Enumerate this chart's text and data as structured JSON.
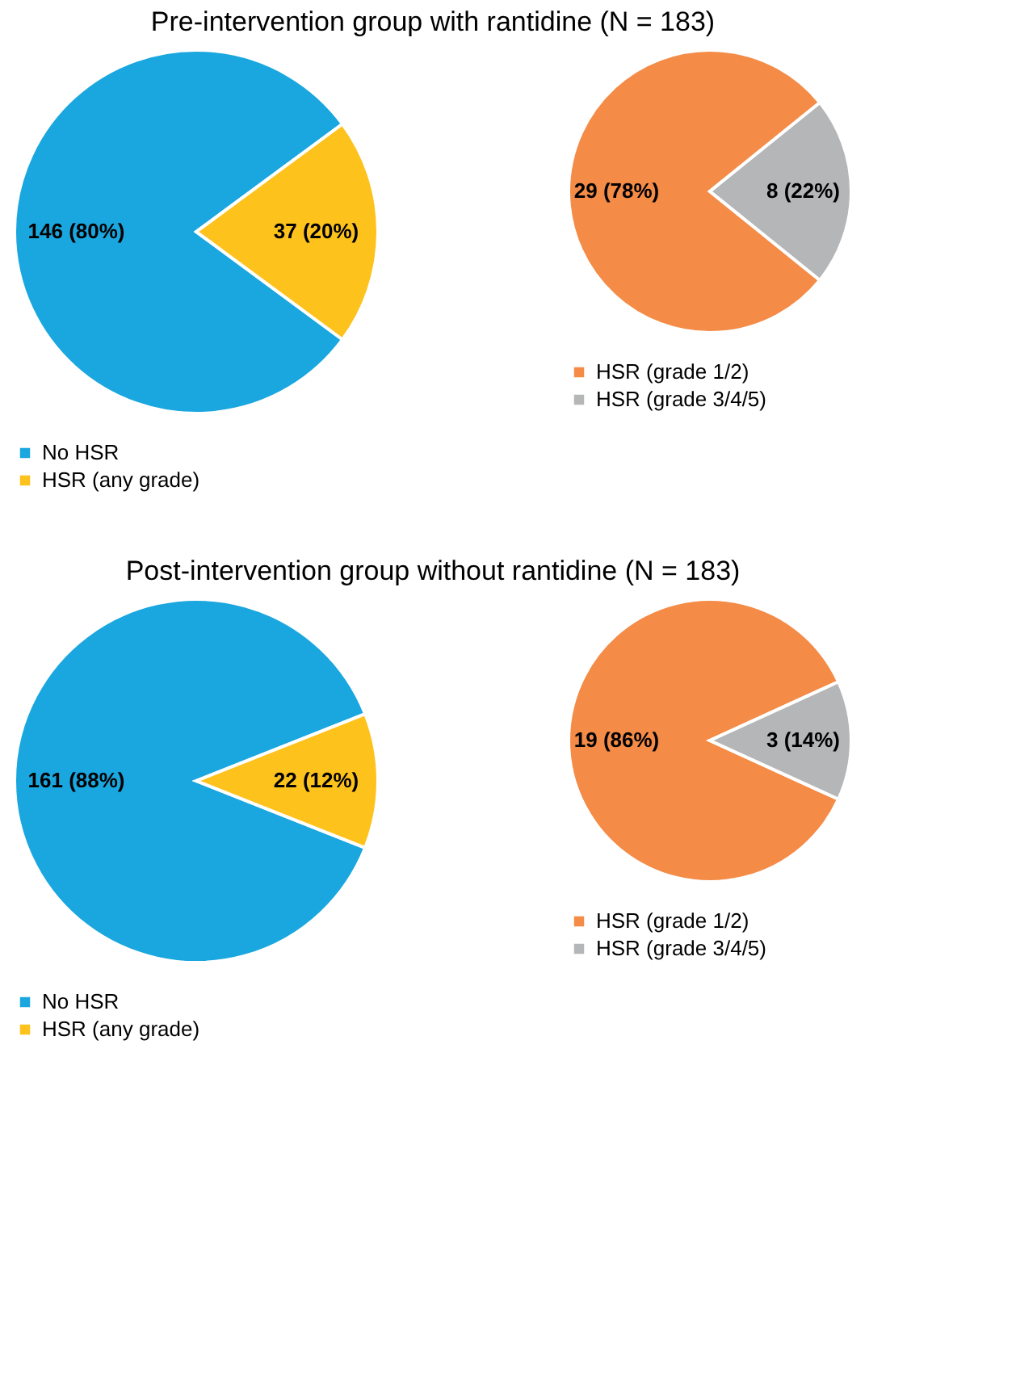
{
  "chart_data": [
    {
      "type": "pie",
      "title": "Pre-intervention group with rantidine (N = 183)",
      "categories": [
        "No HSR",
        "HSR (any grade)"
      ],
      "values": [
        146,
        37
      ],
      "value_labels": [
        "146 (80%)",
        "37 (20%)"
      ],
      "colors": [
        "#1aa7df",
        "#fdc21c"
      ],
      "legend": "bottom"
    },
    {
      "type": "pie",
      "categories": [
        "HSR (grade 1/2)",
        "HSR (grade 3/4/5)"
      ],
      "values": [
        29,
        8
      ],
      "value_labels": [
        "29 (78%)",
        "8 (22%)"
      ],
      "colors": [
        "#f48b47",
        "#b5b6b8"
      ],
      "legend": "bottom"
    },
    {
      "type": "pie",
      "title": "Post-intervention group without rantidine (N = 183)",
      "categories": [
        "No HSR",
        "HSR (any grade)"
      ],
      "values": [
        161,
        22
      ],
      "value_labels": [
        "161 (88%)",
        "22 (12%)"
      ],
      "colors": [
        "#1aa7df",
        "#fdc21c"
      ],
      "legend": "bottom"
    },
    {
      "type": "pie",
      "categories": [
        "HSR (grade 1/2)",
        "HSR (grade 3/4/5)"
      ],
      "values": [
        19,
        3
      ],
      "value_labels": [
        "19 (86%)",
        "3 (14%)"
      ],
      "colors": [
        "#f48b47",
        "#b5b6b8"
      ],
      "legend": "bottom"
    }
  ]
}
